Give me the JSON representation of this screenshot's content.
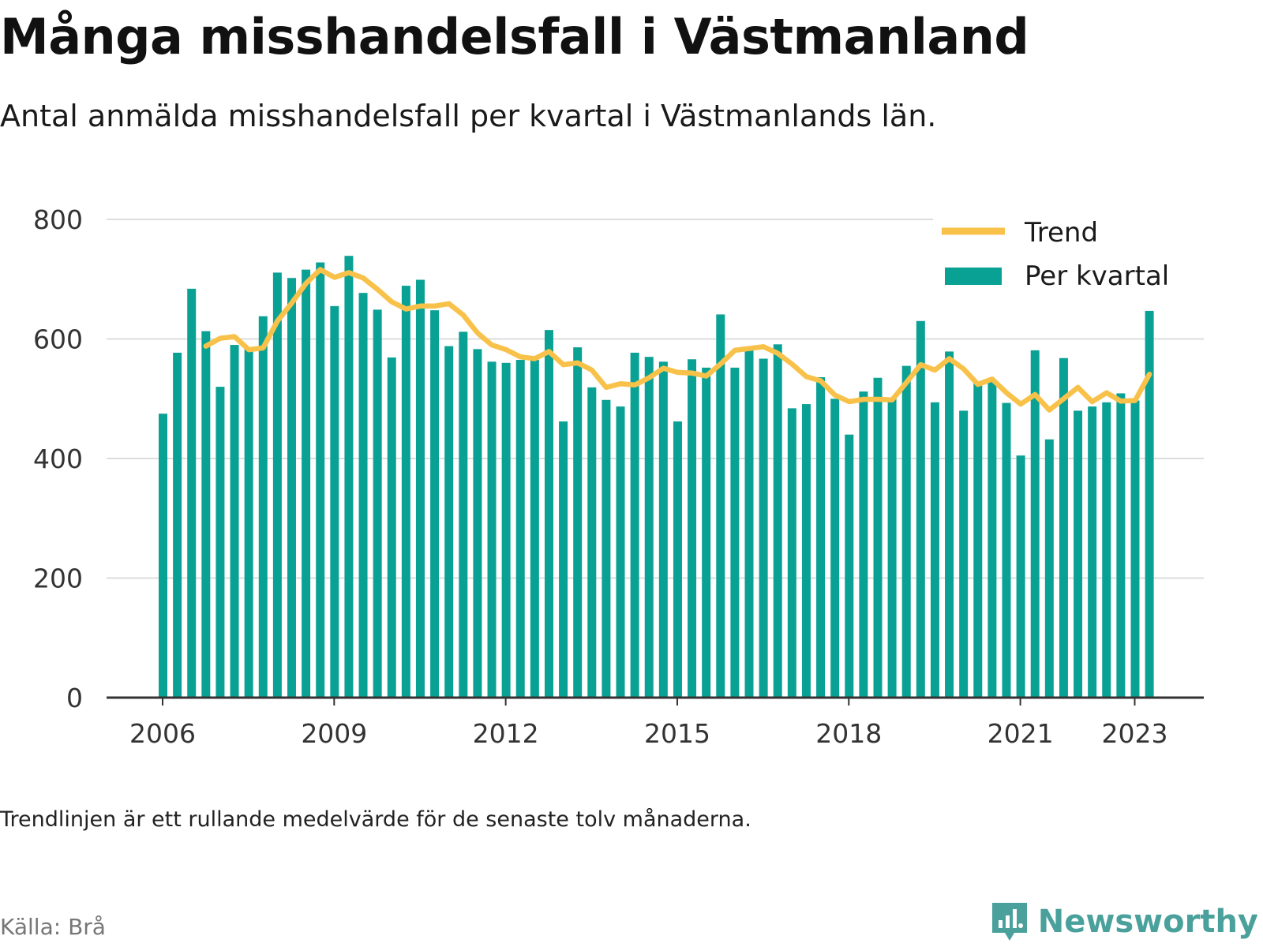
{
  "header": {
    "title": "Många misshandelsfall i Västmanland",
    "subtitle": "Antal anmälda misshandelsfall per kvartal i Västmanlands län."
  },
  "footer": {
    "note": "Trendlinjen är ett rullande medelvärde för de senaste tolv månaderna.",
    "source": "Källa: Brå",
    "brand": "Newsworthy"
  },
  "colors": {
    "bar": "#0aa195",
    "trend": "#f8c24a",
    "grid": "#dddddd",
    "axis": "#333333",
    "brand": "#4aa19b"
  },
  "icons": {
    "brand_logo": "chart-speech-bubble-icon"
  },
  "chart_data": {
    "type": "bar",
    "title": "Många misshandelsfall i Västmanland",
    "xlabel": "",
    "ylabel": "",
    "ylim": [
      0,
      800
    ],
    "yticks": [
      0,
      200,
      400,
      600,
      800
    ],
    "xticks": [
      "2006",
      "2009",
      "2012",
      "2015",
      "2018",
      "2021",
      "2023"
    ],
    "x_start": "2006-Q1",
    "grid": true,
    "legend_position": "top-right",
    "legend": [
      "Trend",
      "Per kvartal"
    ],
    "series": [
      {
        "name": "Per kvartal",
        "type": "bar",
        "values": [
          475,
          577,
          684,
          613,
          520,
          590,
          585,
          638,
          711,
          702,
          716,
          728,
          655,
          739,
          677,
          649,
          569,
          689,
          699,
          648,
          588,
          612,
          583,
          562,
          560,
          565,
          565,
          615,
          462,
          586,
          519,
          498,
          487,
          577,
          570,
          562,
          462,
          566,
          552,
          641,
          552,
          585,
          567,
          591,
          484,
          491,
          536,
          500,
          440,
          512,
          535,
          500,
          555,
          630,
          494,
          579,
          480,
          526,
          530,
          493,
          405,
          581,
          432,
          568,
          480,
          487,
          494,
          509,
          497,
          647
        ]
      },
      {
        "name": "Trend",
        "type": "line",
        "start_index": 3,
        "values": [
          588,
          601,
          604,
          582,
          585,
          630,
          660,
          693,
          716,
          703,
          711,
          702,
          683,
          662,
          650,
          655,
          655,
          659,
          640,
          610,
          590,
          582,
          570,
          567,
          579,
          557,
          560,
          548,
          519,
          525,
          523,
          535,
          551,
          544,
          543,
          538,
          558,
          581,
          584,
          587,
          576,
          558,
          537,
          530,
          506,
          495,
          499,
          499,
          498,
          527,
          557,
          548,
          567,
          550,
          524,
          533,
          510,
          491,
          507,
          481,
          500,
          519,
          495,
          510,
          496,
          497,
          541
        ]
      }
    ]
  }
}
